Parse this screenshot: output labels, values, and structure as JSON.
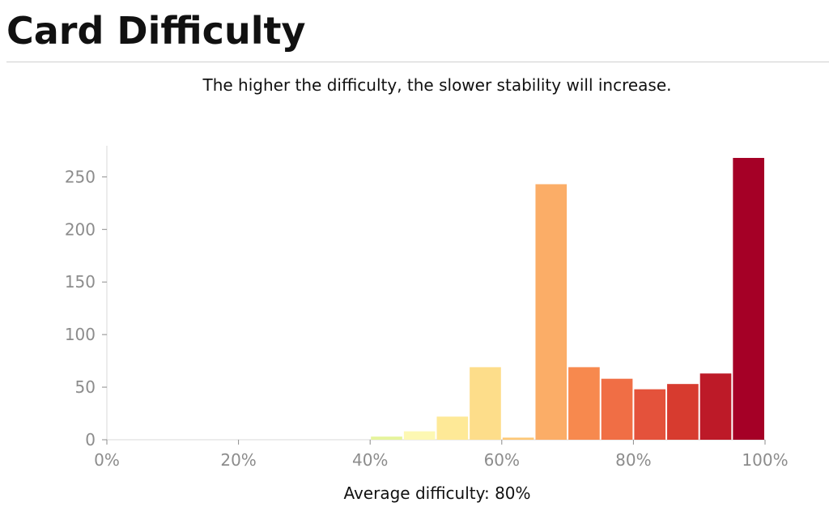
{
  "page": {
    "title": "Card Difficulty",
    "subtitle": "The higher the difficulty, the slower stability will increase."
  },
  "footer": {
    "label": "Average difficulty:",
    "value": "80%"
  },
  "chart_data": {
    "type": "bar",
    "title": "",
    "xlabel": "",
    "ylabel": "",
    "bin_width": 5,
    "xlim": [
      0,
      100
    ],
    "ylim": [
      0,
      280
    ],
    "x_ticks": [
      "0%",
      "20%",
      "40%",
      "60%",
      "80%",
      "100%"
    ],
    "y_ticks": [
      "0",
      "50",
      "100",
      "150",
      "200",
      "250"
    ],
    "grid": false,
    "legend": "none",
    "categories": [
      "40-45%",
      "45-50%",
      "50-55%",
      "55-60%",
      "60-65%",
      "65-70%",
      "70-75%",
      "75-80%",
      "80-85%",
      "85-90%",
      "90-95%",
      "95-100%"
    ],
    "bin_starts": [
      40,
      45,
      50,
      55,
      60,
      65,
      70,
      75,
      80,
      85,
      90,
      95
    ],
    "values": [
      3,
      8,
      22,
      69,
      2,
      243,
      69,
      58,
      48,
      53,
      63,
      268
    ],
    "colors": [
      "#e6f49d",
      "#fdf8b3",
      "#fee997",
      "#fddd8a",
      "#fdc776",
      "#fbad67",
      "#f7894e",
      "#f06e45",
      "#e4523b",
      "#d73b2f",
      "#bd1a28",
      "#a50026"
    ],
    "axis_color": "#8c8c8c"
  }
}
